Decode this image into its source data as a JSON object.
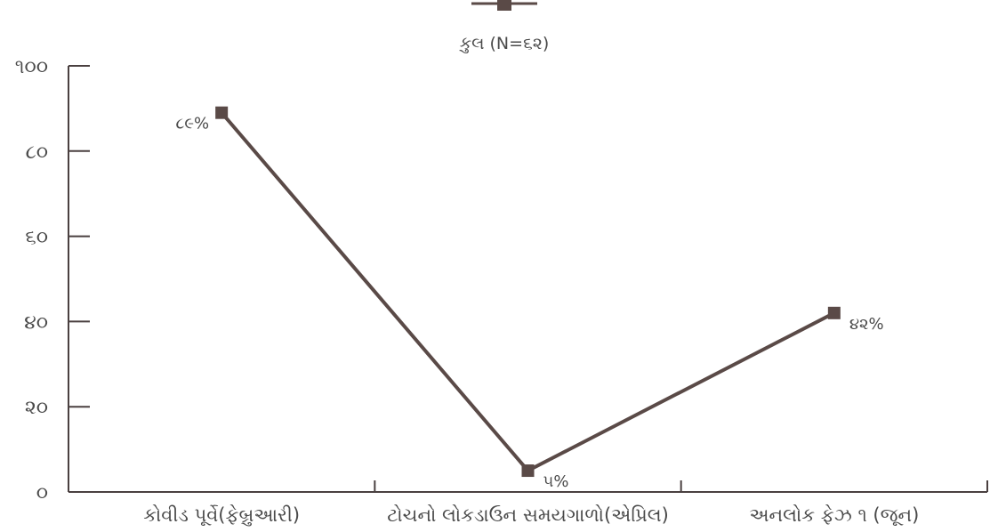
{
  "chart_data": {
    "type": "line",
    "categories": [
      "કોવીડ પૂર્વે(ફેબ્રુઆરી)",
      "ટોચનો લોકડાઉન સમયગાળો(એપ્રિલ)",
      "અનલોક ફેઝ ૧ (જૂન)"
    ],
    "series": [
      {
        "name": "કુલ (N=૬૨)",
        "values": [
          89,
          5,
          42
        ],
        "data_labels": [
          "૮૯%",
          "૫%",
          "૪૨%"
        ],
        "color": "#5a4a47"
      }
    ],
    "y_ticks": [
      {
        "value": 0,
        "label": "૦"
      },
      {
        "value": 20,
        "label": "૨૦"
      },
      {
        "value": 40,
        "label": "૪૦"
      },
      {
        "value": 60,
        "label": "૬૦"
      },
      {
        "value": 80,
        "label": "૮૦"
      },
      {
        "value": 100,
        "label": "૧૦૦"
      }
    ],
    "ylim": [
      0,
      100
    ],
    "title": "",
    "xlabel": "",
    "ylabel": "",
    "grid": false,
    "legend_position": "top-center",
    "axis_color": "#4a4040"
  }
}
